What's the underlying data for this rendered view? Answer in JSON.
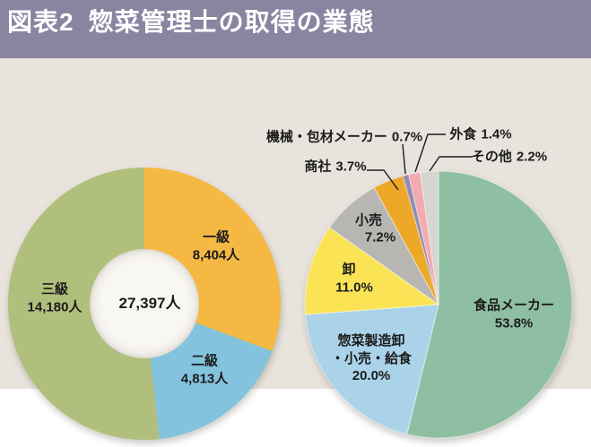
{
  "header": {
    "figure_no": "図表2",
    "title": "惣菜管理士の取得の業態"
  },
  "colors": {
    "header_bg": "#8B84A1",
    "page_bg": "#E8E4DD",
    "donut_hole": "#F8F6F2",
    "label_text": "#1b1b1b"
  },
  "chart_data": [
    {
      "type": "pie",
      "subtype": "donut",
      "name": "grade-donut",
      "unit": "人",
      "total": 27397,
      "center_label": "27,397人",
      "start_angle_deg": 0,
      "direction": "clockwise",
      "slices": [
        {
          "label": "一級",
          "value": 8404,
          "value_label": "8,404人",
          "color": "#F5B843"
        },
        {
          "label": "二級",
          "value": 4813,
          "value_label": "4,813人",
          "color": "#83C3DE"
        },
        {
          "label": "三級",
          "value": 14180,
          "value_label": "14,180人",
          "color": "#B1BF7C"
        }
      ]
    },
    {
      "type": "pie",
      "name": "industry-pie",
      "unit": "%",
      "start_angle_deg": 0,
      "direction": "clockwise",
      "slices": [
        {
          "label": "食品メーカー",
          "pct": 53.8,
          "pct_label": "53.8%",
          "color": "#8FBFA3"
        },
        {
          "label": "惣菜製造卸・小売・給食",
          "label_lines": [
            "惣菜製造卸",
            "・小売・給食"
          ],
          "pct": 20.0,
          "pct_label": "20.0%",
          "color": "#AAD3E9"
        },
        {
          "label": "卸",
          "pct": 11.0,
          "pct_label": "11.0%",
          "color": "#FAE456"
        },
        {
          "label": "小売",
          "pct": 7.2,
          "pct_label": "7.2%",
          "color": "#B7B6B3"
        },
        {
          "label": "商社",
          "pct": 3.7,
          "pct_label": "3.7%",
          "color": "#EDA828"
        },
        {
          "label": "機械・包材メーカー",
          "pct": 0.7,
          "pct_label": "0.7%",
          "color": "#938CB5"
        },
        {
          "label": "外食",
          "pct": 1.4,
          "pct_label": "1.4%",
          "color": "#F2ABB0"
        },
        {
          "label": "その他",
          "pct": 2.2,
          "pct_label": "2.2%",
          "color": "#D6D5D2"
        }
      ]
    }
  ]
}
